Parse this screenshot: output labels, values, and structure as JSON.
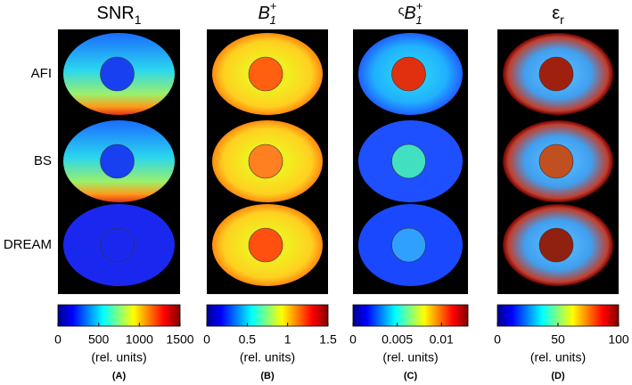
{
  "row_labels": [
    "AFI",
    "BS",
    "DREAM"
  ],
  "columns": [
    {
      "title": {
        "base": "SNR",
        "sub": "1"
      },
      "colorbar": {
        "lim": [
          0,
          1500
        ],
        "ticks": [
          0,
          500,
          1000,
          1500
        ],
        "label": "(rel. units)"
      },
      "letter": "(A)"
    },
    {
      "title": {
        "base": "B",
        "sub": "1",
        "sup": "+"
      },
      "colorbar": {
        "lim": [
          0,
          1.5
        ],
        "ticks": [
          0,
          0.5,
          1,
          1.5
        ],
        "label": "(rel. units)"
      },
      "letter": "(B)"
    },
    {
      "title": {
        "prefix": "ς",
        "base": "B",
        "sub": "1",
        "sup": "+"
      },
      "colorbar": {
        "lim": [
          0,
          0.013
        ],
        "ticks": [
          0,
          0.005,
          0.01
        ],
        "label": "(rel. units)"
      },
      "letter": "(C)"
    },
    {
      "title": {
        "base": "ε",
        "sub": "r"
      },
      "colorbar": {
        "lim": [
          0,
          100
        ],
        "ticks": [
          0,
          50,
          100
        ],
        "label": "(rel. units)"
      },
      "letter": "(D)"
    }
  ]
}
